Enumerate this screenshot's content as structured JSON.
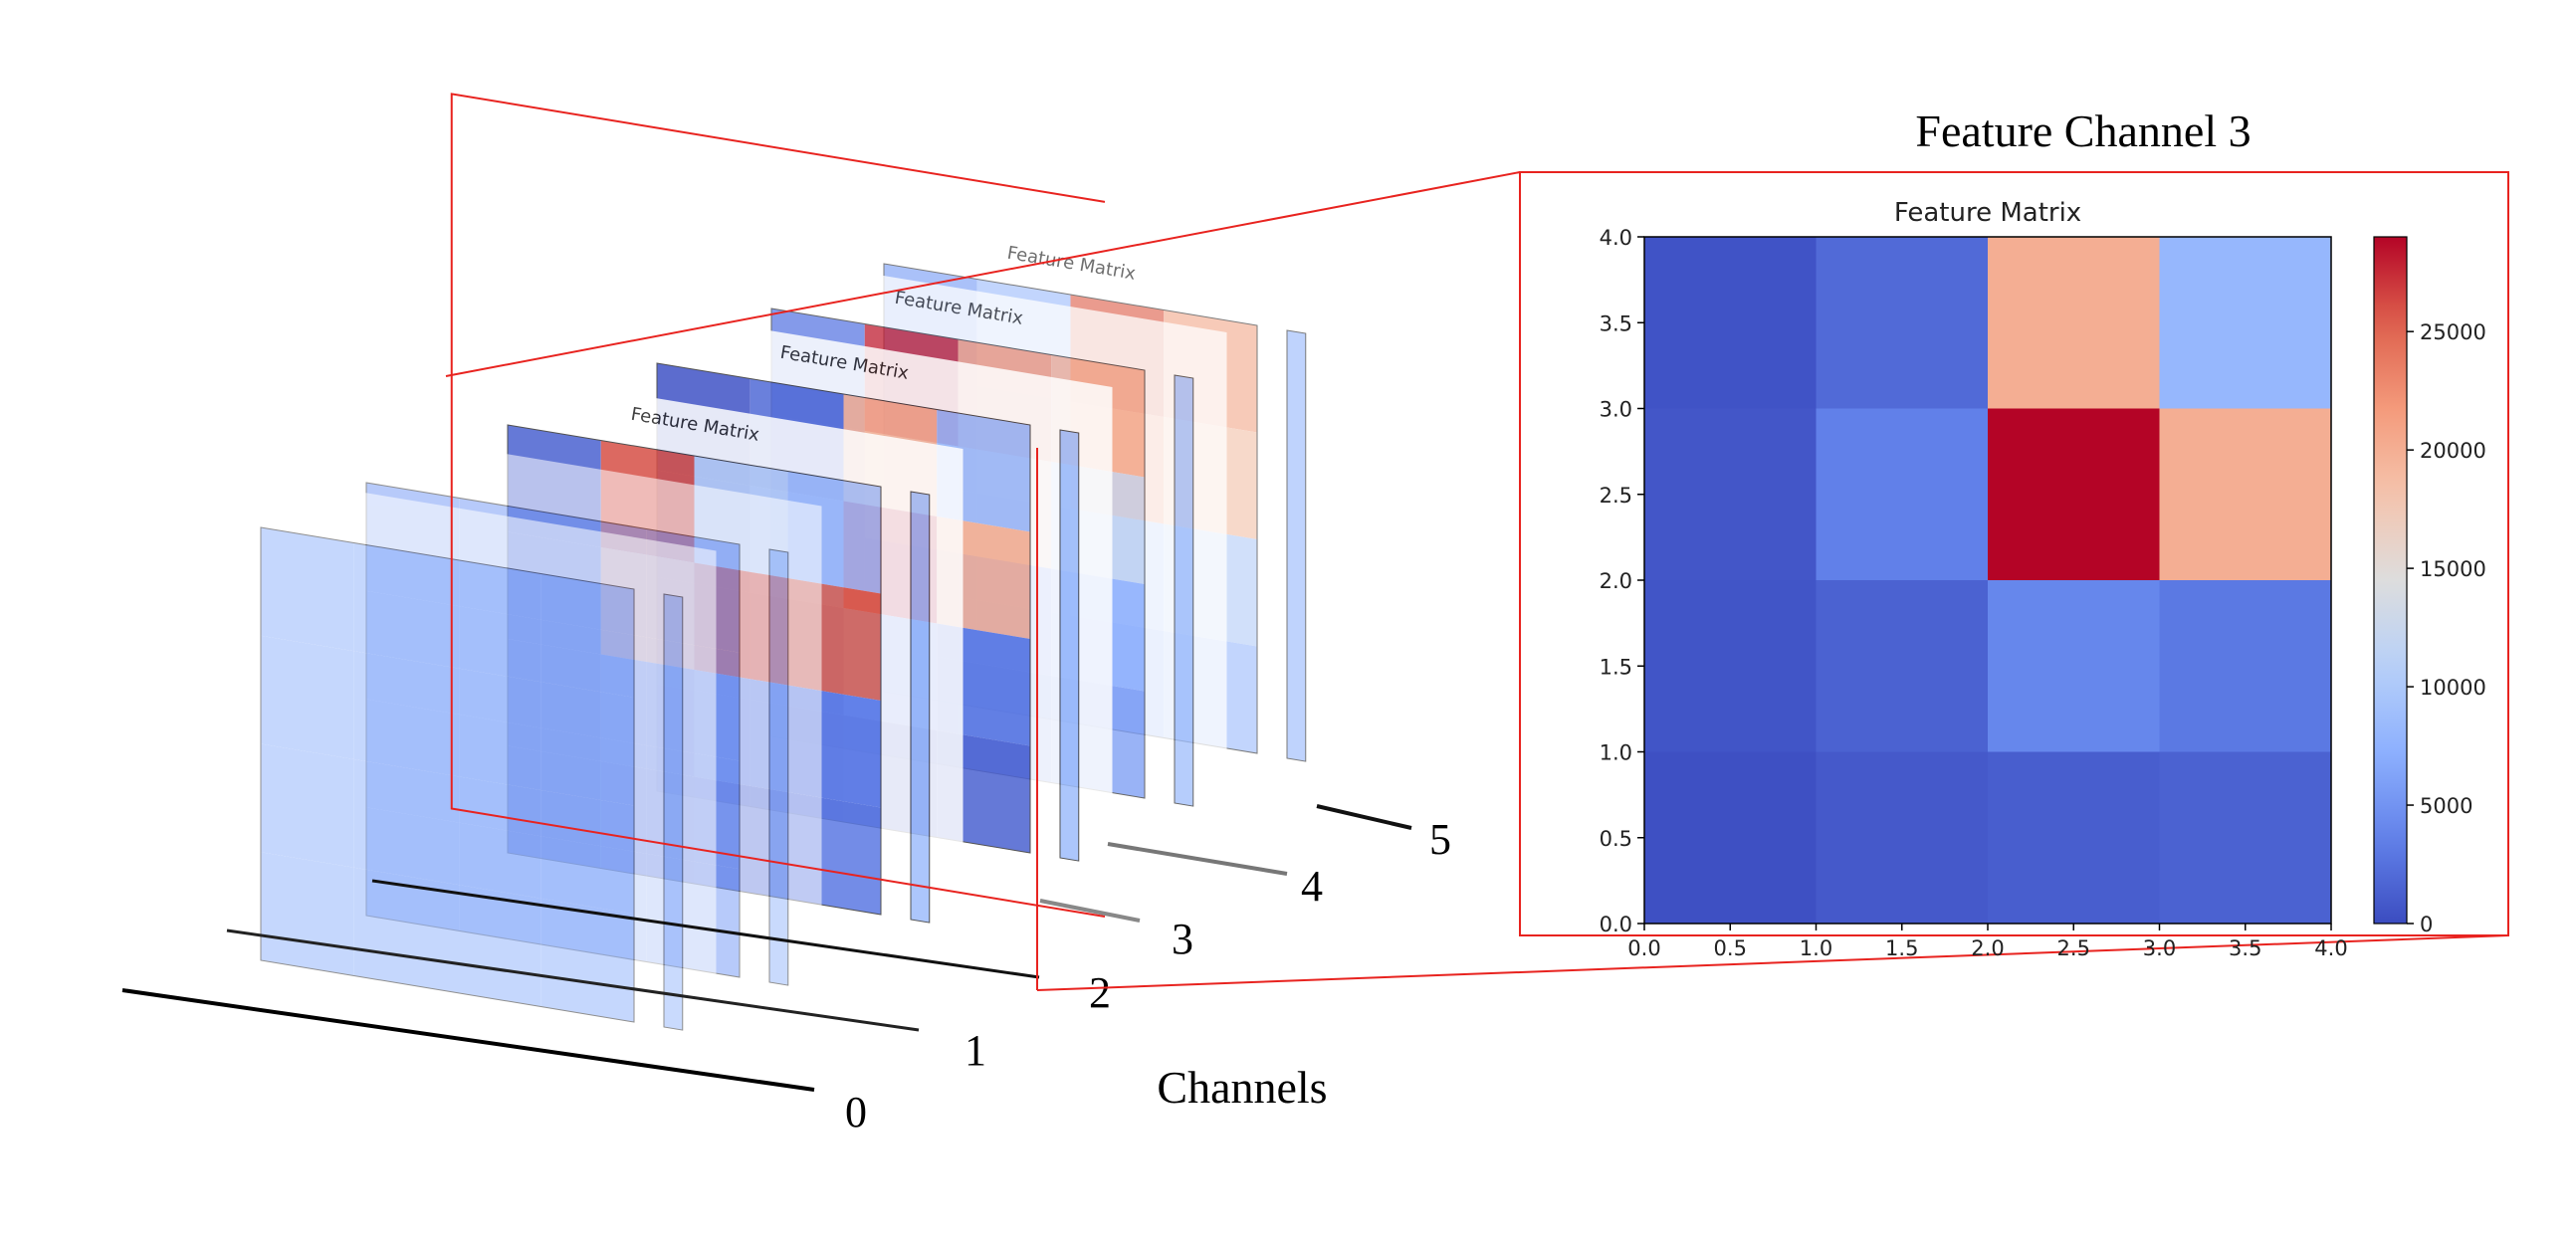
{
  "figure": {
    "axis_label": "Channels",
    "channel_labels": [
      "0",
      "1",
      "2",
      "3",
      "4",
      "5"
    ],
    "zoom_title": "Feature Channel 3",
    "zoom_color": "#e8231f"
  },
  "chart_data": {
    "type": "heatmap",
    "title": "Feature Matrix",
    "x_ticks": [
      "0.0",
      "0.5",
      "1.0",
      "1.5",
      "2.0",
      "2.5",
      "3.0",
      "3.5",
      "4.0"
    ],
    "y_ticks": [
      "0.0",
      "0.5",
      "1.0",
      "1.5",
      "2.0",
      "2.5",
      "3.0",
      "3.5",
      "4.0"
    ],
    "xlim": [
      0,
      4
    ],
    "ylim": [
      0,
      4
    ],
    "colormap": "coolwarm",
    "colorbar": {
      "ticks": [
        "0",
        "5000",
        "10000",
        "15000",
        "20000",
        "25000"
      ],
      "tick_values": [
        0,
        5000,
        10000,
        15000,
        20000,
        25000
      ],
      "range": [
        0,
        29000
      ]
    },
    "rows_top_to_bottom": [
      [
        500,
        2000,
        20000,
        8000
      ],
      [
        700,
        3500,
        29000,
        20000
      ],
      [
        600,
        1500,
        4000,
        3000
      ],
      [
        300,
        900,
        1200,
        1500
      ]
    ]
  },
  "layers": [
    {
      "channel": "0",
      "title": "",
      "rows_top_to_bottom": [
        [
          8000,
          8000,
          8000,
          8000
        ],
        [
          8000,
          8000,
          8000,
          8000
        ],
        [
          8000,
          8000,
          8000,
          8000
        ],
        [
          8000,
          8000,
          8000,
          8000
        ]
      ]
    },
    {
      "channel": "1",
      "title": "",
      "rows_top_to_bottom": [
        [
          6000,
          6000,
          6000,
          6000
        ],
        [
          6000,
          6000,
          6000,
          6000
        ],
        [
          6000,
          6000,
          6000,
          6000
        ],
        [
          6000,
          6000,
          6000,
          6000
        ]
      ]
    },
    {
      "channel": "2",
      "title": "Feature Matrix",
      "rows_top_to_bottom": [
        [
          1500,
          26000,
          11000,
          9000
        ],
        [
          1500,
          22000,
          26000,
          25000
        ],
        [
          1500,
          2500,
          4000,
          3500
        ],
        [
          1500,
          2000,
          2500,
          3000
        ]
      ]
    },
    {
      "channel": "3",
      "title": "Feature Matrix",
      "rows_top_to_bottom": [
        [
          500,
          2000,
          20000,
          8000
        ],
        [
          700,
          3500,
          29000,
          20000
        ],
        [
          600,
          1500,
          4000,
          3000
        ],
        [
          300,
          900,
          1200,
          1500
        ]
      ]
    },
    {
      "channel": "4",
      "title": "Feature Matrix",
      "rows_top_to_bottom": [
        [
          3000,
          28000,
          22000,
          20000
        ],
        [
          3000,
          14000,
          17000,
          12000
        ],
        [
          3000,
          4000,
          5000,
          7000
        ],
        [
          3000,
          3500,
          4000,
          5500
        ]
      ]
    },
    {
      "channel": "5",
      "title": "Feature Matrix",
      "rows_top_to_bottom": [
        [
          6000,
          9000,
          25000,
          20000
        ],
        [
          6000,
          8000,
          22000,
          18000
        ],
        [
          6000,
          7000,
          9000,
          11000
        ],
        [
          6000,
          6500,
          7000,
          9000
        ]
      ]
    }
  ]
}
